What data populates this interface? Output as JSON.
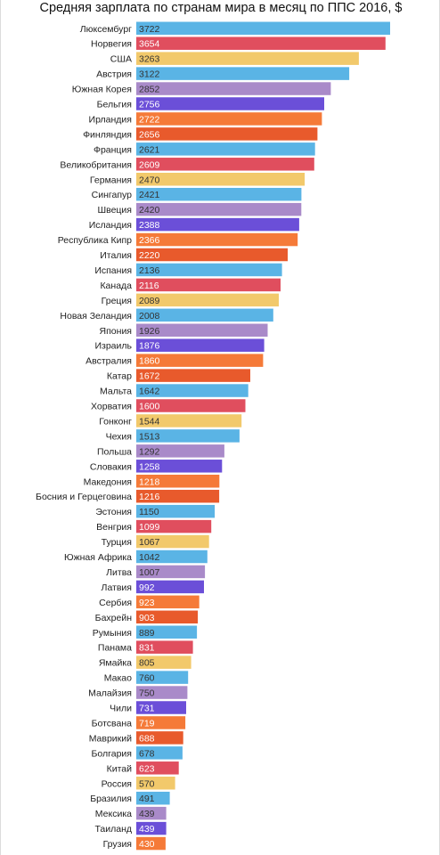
{
  "chart_data": {
    "type": "bar",
    "orientation": "horizontal",
    "title": "Средняя зарплата по странам мира в месяц по ППС 2016, $",
    "xlabel": "",
    "ylabel": "",
    "grid": false,
    "categories": [
      "Люксембург",
      "Норвегия",
      "США",
      "Австрия",
      "Южная Корея",
      "Бельгия",
      "Ирландия",
      "Финляндия",
      "Франция",
      "Великобритания",
      "Германия",
      "Сингапур",
      "Швеция",
      "Исландия",
      "Республика Кипр",
      "Италия",
      "Испания",
      "Канада",
      "Греция",
      "Новая Зеландия",
      "Япония",
      "Израиль",
      "Австралия",
      "Катар",
      "Мальта",
      "Хорватия",
      "Гонконг",
      "Чехия",
      "Польша",
      "Словакия",
      "Македония",
      "Босния и Герцеговина",
      "Эстония",
      "Венгрия",
      "Турция",
      "Южная Африка",
      "Литва",
      "Латвия",
      "Сербия",
      "Бахрейн",
      "Румыния",
      "Панама",
      "Ямайка",
      "Макао",
      "Малайзия",
      "Чили",
      "Ботсвана",
      "Маврикий",
      "Болгария",
      "Китай",
      "Россия",
      "Бразилия",
      "Мексика",
      "Таиланд",
      "Грузия"
    ],
    "values": [
      3722,
      3654,
      3263,
      3122,
      2852,
      2756,
      2722,
      2656,
      2621,
      2609,
      2470,
      2421,
      2420,
      2388,
      2366,
      2220,
      2136,
      2116,
      2089,
      2008,
      1926,
      1876,
      1860,
      1672,
      1642,
      1600,
      1544,
      1513,
      1292,
      1258,
      1218,
      1216,
      1150,
      1099,
      1067,
      1042,
      1007,
      992,
      923,
      903,
      889,
      831,
      805,
      760,
      750,
      731,
      719,
      688,
      678,
      623,
      570,
      491,
      439,
      439,
      430
    ],
    "colors": [
      "#5ab4e5",
      "#e04e5e",
      "#f2c96b",
      "#5ab4e5",
      "#a98ac9",
      "#6b4fd8",
      "#f57a38",
      "#e85a2c",
      "#5ab4e5",
      "#e04e5e",
      "#f2c96b",
      "#5ab4e5",
      "#a98ac9",
      "#6b4fd8",
      "#f57a38",
      "#e85a2c",
      "#5ab4e5",
      "#e04e5e",
      "#f2c96b",
      "#5ab4e5",
      "#a98ac9",
      "#6b4fd8",
      "#f57a38",
      "#e85a2c",
      "#5ab4e5",
      "#e04e5e",
      "#f2c96b",
      "#5ab4e5",
      "#a98ac9",
      "#6b4fd8",
      "#f57a38",
      "#e85a2c",
      "#5ab4e5",
      "#e04e5e",
      "#f2c96b",
      "#5ab4e5",
      "#a98ac9",
      "#6b4fd8",
      "#f57a38",
      "#e85a2c",
      "#5ab4e5",
      "#e04e5e",
      "#f2c96b",
      "#5ab4e5",
      "#a98ac9",
      "#6b4fd8",
      "#f57a38",
      "#e85a2c",
      "#5ab4e5",
      "#e04e5e",
      "#f2c96b",
      "#5ab4e5",
      "#a98ac9",
      "#6b4fd8",
      "#f57a38"
    ],
    "label_text_dark_on": [
      "#f2c96b",
      "#5ab4e5",
      "#a98ac9"
    ],
    "label_color_dark": "#333333",
    "label_color_light": "#ffffff",
    "xlim": [
      0,
      3722
    ]
  }
}
